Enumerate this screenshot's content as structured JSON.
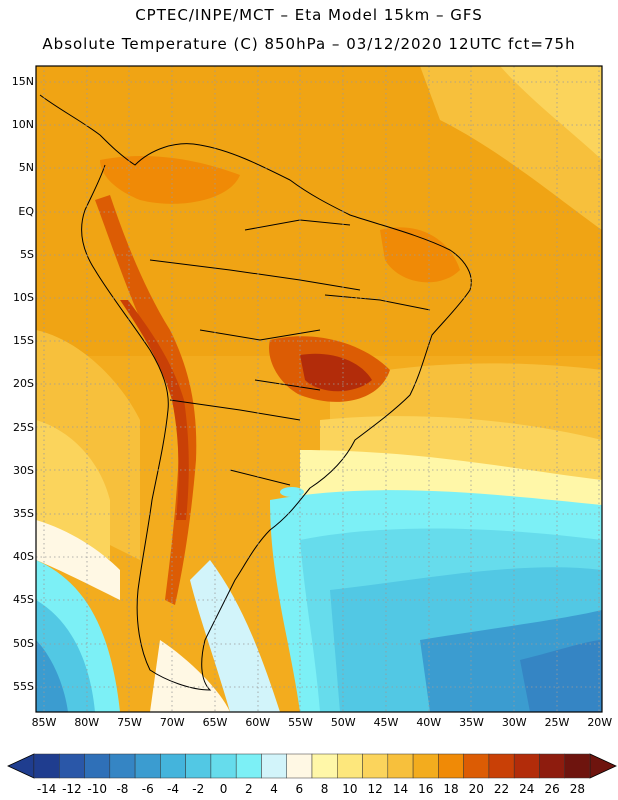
{
  "header": {
    "line1": "CPTEC/INPE/MCT –  Eta Model 15km – GFS",
    "line2": "Absolute Temperature (C) 850hPa – 03/12/2020 12UTC fct=75h"
  },
  "latitude_labels": [
    "15N",
    "10N",
    "5N",
    "EQ",
    "5S",
    "10S",
    "15S",
    "20S",
    "25S",
    "30S",
    "35S",
    "40S",
    "45S",
    "50S",
    "55S"
  ],
  "longitude_labels": [
    "85W",
    "80W",
    "75W",
    "70W",
    "65W",
    "60W",
    "55W",
    "50W",
    "45W",
    "40W",
    "35W",
    "30W",
    "25W",
    "20W"
  ],
  "colorbar": {
    "labels": [
      "-14",
      "-12",
      "-10",
      "-8",
      "-6",
      "-4",
      "-2",
      "0",
      "2",
      "4",
      "6",
      "8",
      "10",
      "12",
      "14",
      "16",
      "18",
      "20",
      "22",
      "24",
      "26",
      "28"
    ],
    "colors": [
      "#1f3d8f",
      "#2a57a8",
      "#2f70b8",
      "#3585c4",
      "#3b9cd0",
      "#44b4dc",
      "#52c8e4",
      "#66dcec",
      "#7cf0f6",
      "#d2f4fa",
      "#fff8e4",
      "#fff7a8",
      "#fde77c",
      "#fbd45c",
      "#f7c03c",
      "#f3ac1e",
      "#f08a06",
      "#dc5c04",
      "#c94006",
      "#b22c0a",
      "#8e1c0e",
      "#6e140e"
    ]
  }
}
